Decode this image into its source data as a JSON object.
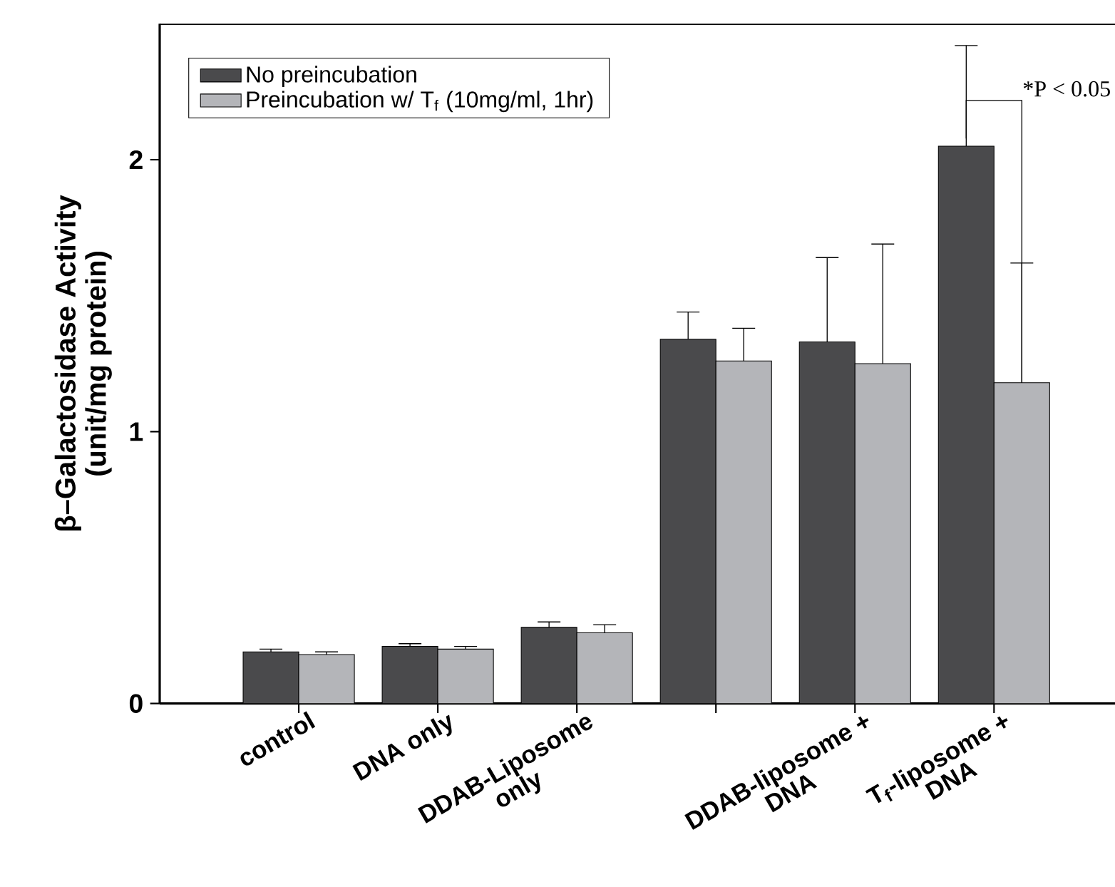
{
  "chart_data": {
    "type": "bar",
    "ylabel": "β–Galactosidase Activity (unit/mg protein)",
    "categories": [
      "control",
      "DNA only",
      "DDAB-Liposome only",
      null,
      "DDAB-liposome + DNA",
      "T$_{f}$-liposome + DNA"
    ],
    "series": [
      {
        "name": "No preincubation",
        "color": "#4a4a4c",
        "values": [
          0.19,
          0.21,
          0.28,
          1.34,
          1.33,
          2.05
        ],
        "errors": [
          [
            0.19,
            0.2
          ],
          [
            0.21,
            0.22
          ],
          [
            0.28,
            0.3
          ],
          [
            1.34,
            1.44
          ],
          [
            1.33,
            1.64
          ],
          [
            2.05,
            2.42
          ]
        ]
      },
      {
        "name": "Preincubation w/ T$_{f}$ (10mg/ml, 1hr)",
        "color": "#b4b5b9",
        "values": [
          0.18,
          0.2,
          0.26,
          1.26,
          1.25,
          1.18
        ],
        "errors": [
          [
            0.18,
            0.19
          ],
          [
            0.2,
            0.21
          ],
          [
            0.26,
            0.29
          ],
          [
            1.26,
            1.38
          ],
          [
            1.25,
            1.69
          ],
          [
            1.18,
            1.62
          ]
        ]
      }
    ],
    "ylim": [
      0,
      2.5
    ],
    "yticks": [
      0,
      1,
      2
    ],
    "legend": "top left",
    "annotations": [
      "*P < 0.05"
    ]
  }
}
